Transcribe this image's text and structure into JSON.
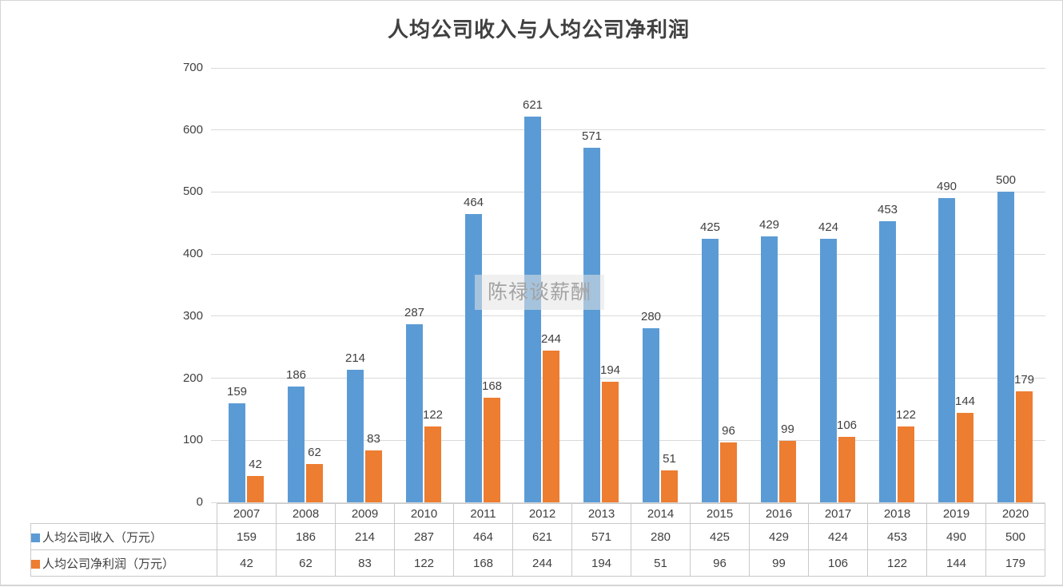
{
  "title": "人均公司收入与人均公司净利润",
  "watermark": "陈禄谈薪酬",
  "chart_data": {
    "type": "bar",
    "title": "人均公司收入与人均公司净利润",
    "categories": [
      "2007",
      "2008",
      "2009",
      "2010",
      "2011",
      "2012",
      "2013",
      "2014",
      "2015",
      "2016",
      "2017",
      "2018",
      "2019",
      "2020"
    ],
    "series": [
      {
        "name": "人均公司收入（万元）",
        "color": "#5B9BD5",
        "values": [
          159,
          186,
          214,
          287,
          464,
          621,
          571,
          280,
          425,
          429,
          424,
          453,
          490,
          500
        ]
      },
      {
        "name": "人均公司净利润（万元）",
        "color": "#ED7D31",
        "values": [
          42,
          62,
          83,
          122,
          168,
          244,
          194,
          51,
          96,
          99,
          106,
          122,
          144,
          179
        ]
      }
    ],
    "ylim": [
      0,
      700
    ],
    "ytick_step": 100,
    "y_ticks": [
      0,
      100,
      200,
      300,
      400,
      500,
      600,
      700
    ],
    "grid": true,
    "data_labels": true,
    "legend_position": "data-table-left",
    "colors": {
      "revenue_bar": "#5B9BD5",
      "profit_bar": "#ED7D31",
      "gridline": "#D9D9D9",
      "text": "#404040",
      "table_border": "#C9C9C9",
      "watermark_text": "#A3A3A3"
    }
  }
}
